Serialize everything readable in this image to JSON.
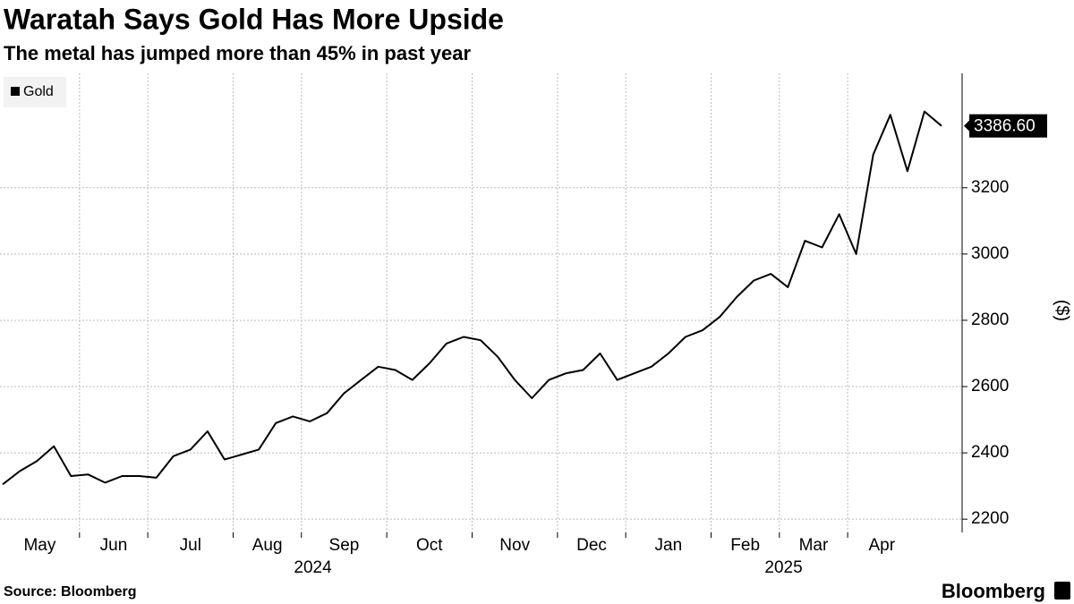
{
  "chart_data": {
    "type": "line",
    "title": "Waratah Says Gold Has More Upside",
    "subtitle": "The metal has jumped more than 45% in past year",
    "source": "Source: Bloomberg",
    "brand": "Bloomberg",
    "y_label": "($)",
    "legend": "top-left",
    "grid": true,
    "categories": [
      "May",
      null,
      null,
      null,
      null,
      "Jun",
      null,
      null,
      null,
      "Jul",
      null,
      null,
      null,
      null,
      "Aug",
      null,
      null,
      null,
      "Sep",
      null,
      null,
      null,
      null,
      "Oct",
      null,
      null,
      null,
      null,
      "Nov",
      null,
      null,
      null,
      null,
      "Dec",
      null,
      null,
      null,
      "Jan",
      null,
      null,
      null,
      null,
      "Feb",
      null,
      null,
      null,
      "Mar",
      null,
      null,
      null,
      "Apr",
      null,
      null,
      null,
      null,
      null
    ],
    "x_groups": [
      {
        "label": "2024",
        "start": 0
      },
      {
        "label": "2025",
        "start": 37
      }
    ],
    "series": [
      {
        "name": "Gold",
        "color": "#000000",
        "values": [
          2305,
          2345,
          2375,
          2420,
          2330,
          2335,
          2310,
          2330,
          2330,
          2325,
          2390,
          2410,
          2465,
          2380,
          2395,
          2410,
          2490,
          2510,
          2495,
          2520,
          2580,
          2620,
          2660,
          2650,
          2620,
          2670,
          2730,
          2750,
          2740,
          2690,
          2620,
          2565,
          2620,
          2640,
          2650,
          2700,
          2620,
          2640,
          2660,
          2700,
          2750,
          2770,
          2810,
          2870,
          2920,
          2940,
          2900,
          3040,
          3020,
          3120,
          3000,
          3300,
          3420,
          3250,
          3430,
          3386.6
        ],
        "value_labels": [
          null,
          null,
          null,
          null,
          null,
          null,
          null,
          null,
          null,
          null,
          null,
          null,
          null,
          null,
          null,
          null,
          null,
          null,
          null,
          null,
          null,
          null,
          null,
          null,
          null,
          null,
          null,
          null,
          null,
          null,
          null,
          null,
          null,
          null,
          null,
          null,
          null,
          null,
          null,
          null,
          null,
          null,
          null,
          null,
          null,
          null,
          null,
          null,
          null,
          null,
          null,
          null,
          null,
          null,
          null,
          "3386.60"
        ]
      }
    ],
    "ylim": [
      2160,
      3545
    ],
    "yticks": [
      2200,
      2400,
      2600,
      2800,
      3000,
      3200
    ]
  }
}
